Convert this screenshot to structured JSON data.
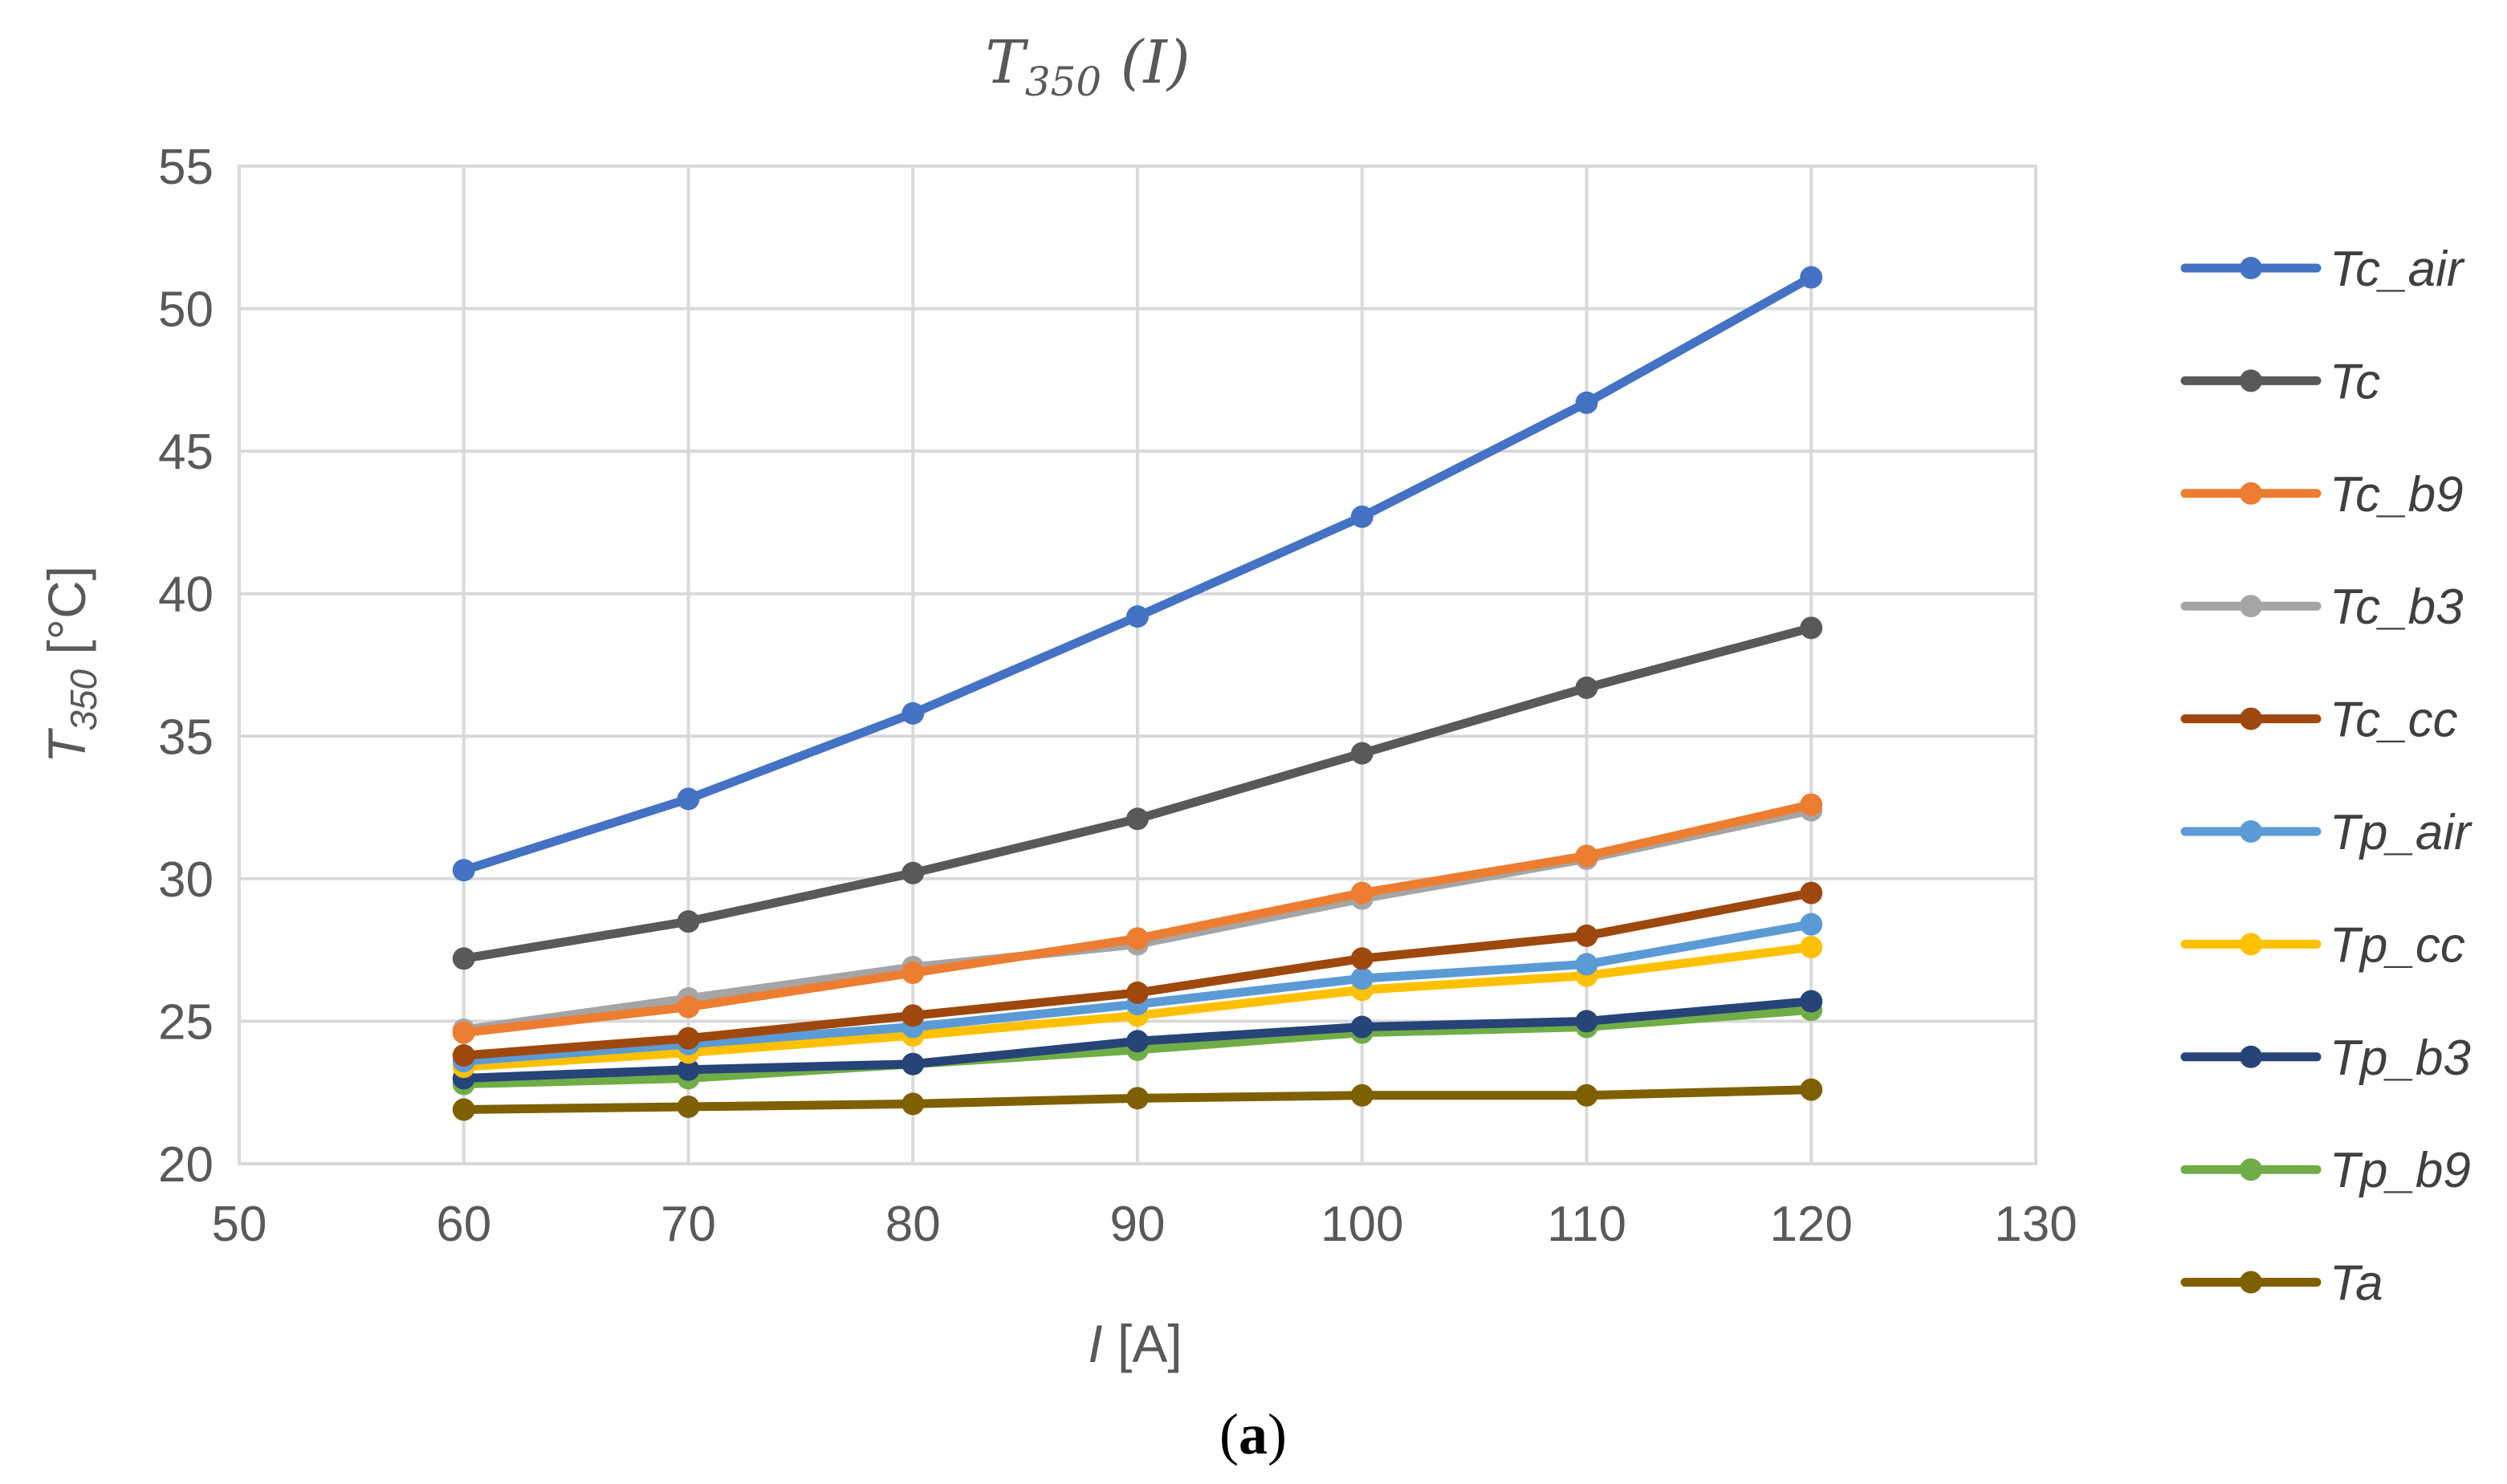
{
  "chart_data": {
    "type": "line",
    "title": {
      "main": "T",
      "sub": "350",
      "rest": " (I)"
    },
    "xlabel": {
      "italic": "I",
      "rest": " [A]"
    },
    "ylabel": {
      "main": "T",
      "sub": "350",
      "rest": " [°C]"
    },
    "xlim": [
      50,
      130
    ],
    "ylim": [
      20,
      55
    ],
    "xticks": [
      50,
      60,
      70,
      80,
      90,
      100,
      110,
      120,
      130
    ],
    "yticks": [
      20,
      25,
      30,
      35,
      40,
      45,
      50,
      55
    ],
    "grid": true,
    "legend_position": "right",
    "x": [
      60,
      70,
      80,
      90,
      100,
      110,
      120
    ],
    "series": [
      {
        "name": "Tc_air",
        "color": "#4472c4",
        "values": [
          30.3,
          32.8,
          35.8,
          39.2,
          42.7,
          46.7,
          51.1
        ]
      },
      {
        "name": "Tc",
        "color": "#595959",
        "values": [
          27.2,
          28.5,
          30.2,
          32.1,
          34.4,
          36.7,
          38.8
        ]
      },
      {
        "name": "Tc_b9",
        "color": "#ed7d31",
        "values": [
          24.6,
          25.5,
          26.7,
          27.9,
          29.5,
          30.8,
          32.6
        ]
      },
      {
        "name": "Tc_b3",
        "color": "#a5a5a5",
        "values": [
          24.7,
          25.8,
          26.9,
          27.7,
          29.3,
          30.7,
          32.4
        ]
      },
      {
        "name": "Tc_cc",
        "color": "#9e480e",
        "values": [
          23.8,
          24.4,
          25.2,
          26.0,
          27.2,
          28.0,
          29.5
        ]
      },
      {
        "name": "Tp_air",
        "color": "#5b9bd5",
        "values": [
          23.6,
          24.2,
          24.8,
          25.6,
          26.5,
          27.0,
          28.4
        ]
      },
      {
        "name": "Tp_cc",
        "color": "#ffc000",
        "values": [
          23.4,
          23.9,
          24.5,
          25.2,
          26.1,
          26.6,
          27.6
        ]
      },
      {
        "name": "Tp_b3",
        "color": "#264478",
        "values": [
          23.0,
          23.3,
          23.5,
          24.3,
          24.8,
          25.0,
          25.7
        ]
      },
      {
        "name": "Tp_b9",
        "color": "#70ad47",
        "values": [
          22.8,
          23.0,
          23.5,
          24.0,
          24.6,
          24.8,
          25.4
        ]
      },
      {
        "name": "Ta",
        "color": "#7f6000",
        "values": [
          21.9,
          22.0,
          22.1,
          22.3,
          22.4,
          22.4,
          22.6
        ]
      }
    ]
  },
  "caption": {
    "open": "(",
    "letter": "a",
    "close": ")"
  }
}
